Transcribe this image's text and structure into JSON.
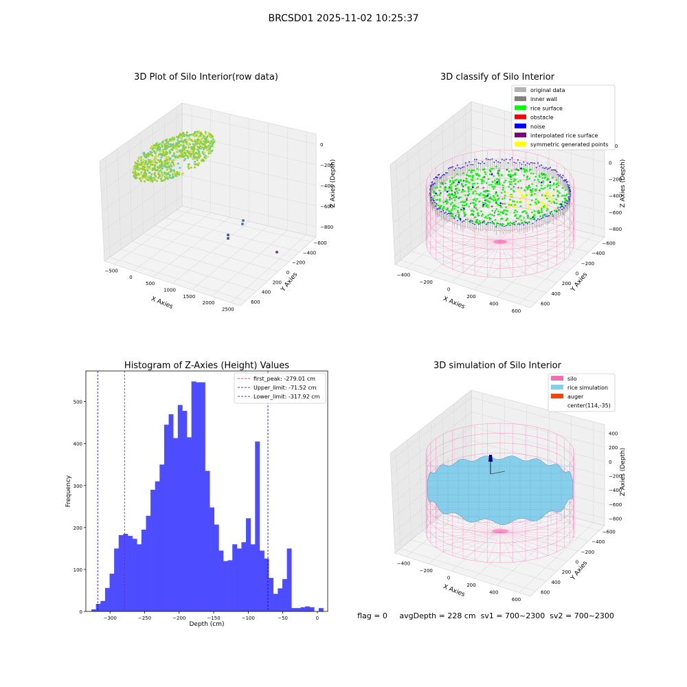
{
  "figure": {
    "title": "BRCSD01 2025-11-02 10:25:37",
    "status_line": "flag = 0     avgDepth = 228 cm  sv1 = 700~2300  sv2 = 700~2300"
  },
  "colors": {
    "histogram_bar": "#4d4dff",
    "first_peak_line": "#ff0000",
    "limit_lines": "#0000cc",
    "silo": "#ff69b4",
    "rice_simulation": "#87ceeb",
    "auger": "#ff4500",
    "original_data": "#b3b3b3",
    "inner_wall": "#808080",
    "rice_surface": "#00ff00",
    "obstacle": "#ff0000",
    "noise": "#0000ff",
    "interpolated_rice_surface": "#800080",
    "symmetric_generated_points": "#ffff00"
  },
  "chart_data": [
    {
      "id": "raw",
      "type": "scatter",
      "projection": "3d",
      "title": "3D Plot of Silo Interior(row data)",
      "xlabel": "X Axies",
      "ylabel": "Y Axies",
      "zlabel": "Z Axies (Depth)",
      "x_ticks": [
        "−500",
        "0",
        "500",
        "1000",
        "1500",
        "2000",
        "2500"
      ],
      "y_ticks": [
        "−600",
        "−400",
        "−200",
        "0",
        "200",
        "400",
        "600"
      ],
      "z_ticks": [
        "−800",
        "−600",
        "−400",
        "−200",
        "0"
      ],
      "outlier_points": [
        {
          "x": 1550,
          "y": 300,
          "z": -800
        },
        {
          "x": 1500,
          "y": 280,
          "z": -760
        },
        {
          "x": 1350,
          "y": 150,
          "z": -870
        },
        {
          "x": 1300,
          "y": 120,
          "z": -900
        },
        {
          "x": 2300,
          "y": 350,
          "z": -820
        }
      ]
    },
    {
      "id": "classify",
      "type": "scatter",
      "projection": "3d",
      "title": "3D classify of Silo Interior",
      "xlabel": "X Axies",
      "ylabel": "Y Axies",
      "zlabel": "Z Axies (Depth)",
      "x_ticks": [
        "−400",
        "−200",
        "0",
        "200",
        "400",
        "600"
      ],
      "y_ticks": [
        "−600",
        "−400",
        "−200",
        "0",
        "200",
        "400",
        "600"
      ],
      "z_ticks": [
        "−800",
        "−600",
        "−400",
        "−200",
        "0",
        "200"
      ],
      "legend_position": "top-right",
      "legend": [
        "original data",
        "inner wall",
        "rice surface",
        "obstacle",
        "noise",
        "interpolated rice surface",
        "symmetric generated points"
      ]
    },
    {
      "id": "hist",
      "type": "bar",
      "title": "Histogram of Z-Axies (Height) Values",
      "xlabel": "Depth (cm)",
      "ylabel": "Frequency",
      "xlim": [
        -335,
        15
      ],
      "ylim": [
        0,
        573
      ],
      "x_ticks": [
        -300,
        -250,
        -200,
        -150,
        -100,
        -50,
        0
      ],
      "y_ticks": [
        0,
        100,
        200,
        300,
        400,
        500
      ],
      "bin_start": -327,
      "bin_width": 6.58,
      "values": [
        5,
        18,
        25,
        56,
        90,
        150,
        182,
        185,
        180,
        173,
        160,
        195,
        228,
        290,
        310,
        350,
        445,
        470,
        413,
        492,
        478,
        415,
        548,
        546,
        546,
        335,
        248,
        207,
        145,
        120,
        122,
        160,
        150,
        165,
        222,
        160,
        405,
        145,
        126,
        80,
        42,
        55,
        77,
        150,
        8,
        8,
        10,
        12,
        10,
        0,
        8
      ],
      "vlines": [
        {
          "label": "first_peak: -279.01 cm",
          "x": -279.01,
          "color": "#ff0000"
        },
        {
          "label": "Upper_limit: -71.52 cm",
          "x": -71.52,
          "color": "#0000cc"
        },
        {
          "label": "Lower_limit: -317.92 cm",
          "x": -317.92,
          "color": "#0000cc"
        }
      ],
      "legend_position": "top-right"
    },
    {
      "id": "sim",
      "type": "surface",
      "projection": "3d",
      "title": "3D simulation of Silo Interior",
      "xlabel": "X Axies",
      "ylabel": "Y Axies",
      "zlabel": "Z Axies (Depth)",
      "x_ticks": [
        "−400",
        "−200",
        "0",
        "200",
        "400",
        "600"
      ],
      "y_ticks": [
        "−600",
        "−400",
        "−200",
        "0",
        "200",
        "400",
        "600"
      ],
      "z_ticks": [
        "−800",
        "−600",
        "−400",
        "−200",
        "0",
        "200",
        "400"
      ],
      "legend_position": "top-right",
      "legend": [
        "silo",
        "rice simulation",
        "auger",
        "center(114,-35)"
      ]
    }
  ]
}
